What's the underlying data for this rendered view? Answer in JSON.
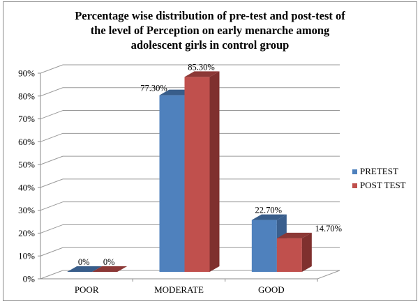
{
  "chart_data": {
    "type": "bar",
    "title_lines": [
      "Percentage wise distribution of pre-test and post-test of",
      "the level of Perception on early menarche among",
      "adolescent girls in control group"
    ],
    "categories": [
      "POOR",
      "MODERATE",
      "GOOD"
    ],
    "series": [
      {
        "name": "PRETEST",
        "values": [
          0,
          77.3,
          22.7
        ],
        "labels": [
          "0%",
          "77.30%",
          "22.70%"
        ],
        "color": "#4F81BD",
        "top_color": "#385D8A",
        "side_color": "#3A5F8E"
      },
      {
        "name": "POST TEST",
        "values": [
          0,
          85.3,
          14.7
        ],
        "labels": [
          "0%",
          "85.30%",
          "14.70%"
        ],
        "color": "#C0504D",
        "top_color": "#8C3836",
        "side_color": "#7F302E"
      }
    ],
    "yticks": [
      "0%",
      "10%",
      "20%",
      "30%",
      "40%",
      "50%",
      "60%",
      "70%",
      "80%",
      "90%"
    ],
    "ylim": [
      0,
      90
    ],
    "xlabel": "",
    "ylabel": "",
    "grid": true,
    "legend_position": "right"
  }
}
